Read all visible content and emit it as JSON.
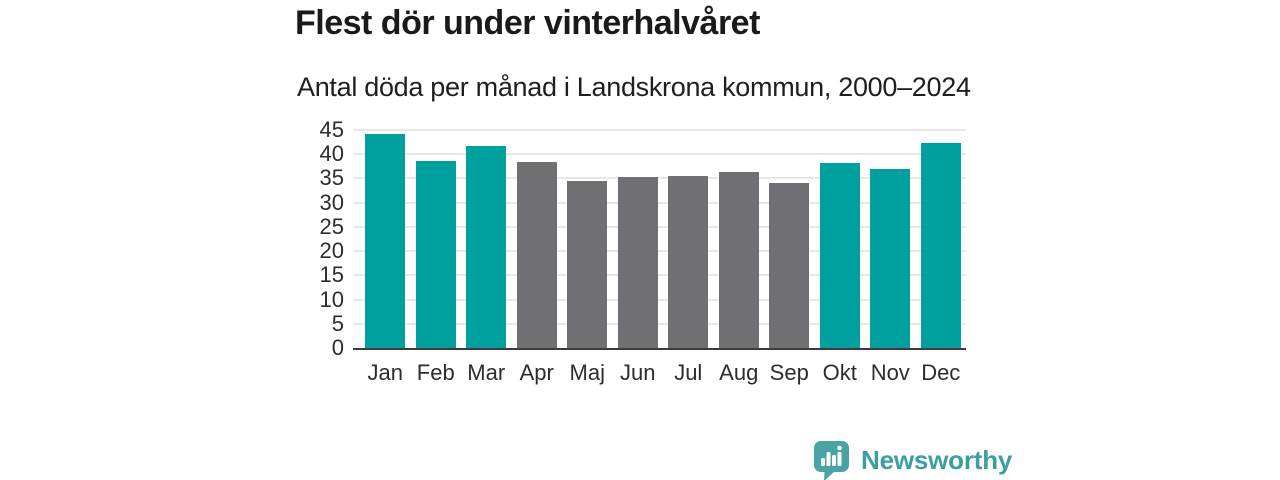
{
  "header": {
    "title": "Flest dör under vinterhalvåret",
    "subtitle": "Antal döda per månad i Landskrona kommun, 2000–2024"
  },
  "chart_data": {
    "type": "bar",
    "title": "Flest dör under vinterhalvåret",
    "subtitle": "Antal döda per månad i Landskrona kommun, 2000–2024",
    "categories": [
      "Jan",
      "Feb",
      "Mar",
      "Apr",
      "Maj",
      "Jun",
      "Jul",
      "Aug",
      "Sep",
      "Okt",
      "Nov",
      "Dec"
    ],
    "values": [
      44.1,
      38.7,
      41.8,
      38.5,
      34.4,
      35.4,
      35.6,
      36.4,
      34.1,
      38.2,
      37.0,
      42.3
    ],
    "bar_color_keys": [
      "teal",
      "teal",
      "teal",
      "gray",
      "gray",
      "gray",
      "gray",
      "gray",
      "gray",
      "teal",
      "teal",
      "teal"
    ],
    "colors": {
      "teal": "#00a09e",
      "gray": "#706f74"
    },
    "xlabel": "",
    "ylabel": "",
    "ylim": [
      0,
      45
    ],
    "yticks": [
      0,
      5,
      10,
      15,
      20,
      25,
      30,
      35,
      40,
      45
    ],
    "grid": true,
    "legend": "none"
  },
  "branding": {
    "logo_text": "Newsworthy",
    "logo_color": "#3a9fa0",
    "logo_icon": "bar-chart-speech-bubble-icon"
  }
}
